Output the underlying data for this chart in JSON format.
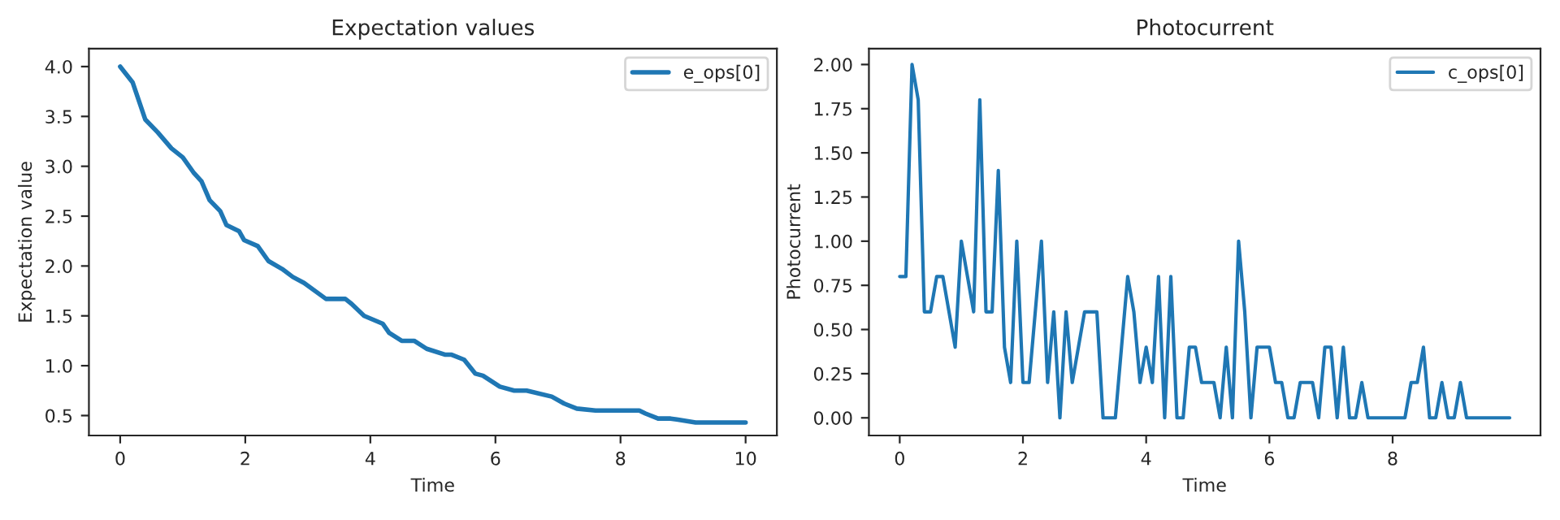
{
  "chart_data": [
    {
      "type": "line",
      "title": "Expectation values",
      "xlabel": "Time",
      "ylabel": "Expectation value",
      "series": [
        {
          "name": "e_ops[0]",
          "color": "#1f77b4",
          "x": [
            0,
            0.2,
            0.4,
            0.6,
            0.82,
            1.0,
            1.17,
            1.3,
            1.43,
            1.6,
            1.7,
            1.9,
            1.98,
            2.2,
            2.37,
            2.59,
            2.76,
            2.94,
            3.29,
            3.6,
            3.7,
            3.9,
            4.2,
            4.3,
            4.5,
            4.7,
            4.9,
            5.2,
            5.3,
            5.5,
            5.68,
            5.8,
            6.07,
            6.3,
            6.5,
            6.9,
            7.1,
            7.3,
            7.6,
            8.3,
            8.4,
            8.6,
            8.8,
            8.9,
            9.2,
            10
          ],
          "values": [
            4.0,
            3.84,
            3.47,
            3.34,
            3.18,
            3.09,
            2.94,
            2.85,
            2.66,
            2.55,
            2.41,
            2.35,
            2.26,
            2.2,
            2.05,
            1.97,
            1.89,
            1.83,
            1.67,
            1.67,
            1.62,
            1.5,
            1.42,
            1.33,
            1.25,
            1.25,
            1.17,
            1.11,
            1.11,
            1.06,
            0.92,
            0.9,
            0.79,
            0.75,
            0.75,
            0.69,
            0.62,
            0.57,
            0.55,
            0.55,
            0.52,
            0.47,
            0.47,
            0.46,
            0.43,
            0.43
          ]
        }
      ],
      "xlim": [
        -0.5,
        10.5
      ],
      "xticks": [
        0,
        2,
        4,
        6,
        8,
        10
      ],
      "ylim": [
        0.3,
        4.18
      ],
      "yticks": [
        {
          "value": 0.5,
          "label": "0.5"
        },
        {
          "value": 1.0,
          "label": "1.0"
        },
        {
          "value": 1.5,
          "label": "1.5"
        },
        {
          "value": 2.0,
          "label": "2.0"
        },
        {
          "value": 2.5,
          "label": "2.5"
        },
        {
          "value": 3.0,
          "label": "3.0"
        },
        {
          "value": 3.5,
          "label": "3.5"
        },
        {
          "value": 4.0,
          "label": "4.0"
        }
      ],
      "legend": "top right",
      "grid": false
    },
    {
      "type": "line",
      "title": "Photocurrent",
      "xlabel": "Time",
      "ylabel": "Photocurrent",
      "series": [
        {
          "name": "c_ops[0]",
          "color": "#1f77b4",
          "x": [
            0,
            0.1,
            0.2,
            0.3,
            0.4,
            0.5,
            0.6,
            0.7,
            0.8,
            0.9,
            1.0,
            1.1,
            1.2,
            1.3,
            1.4,
            1.5,
            1.6,
            1.7,
            1.8,
            1.9,
            2.0,
            2.1,
            2.2,
            2.3,
            2.4,
            2.5,
            2.6,
            2.7,
            2.8,
            2.9,
            3.0,
            3.1,
            3.2,
            3.3,
            3.4,
            3.5,
            3.6,
            3.7,
            3.8,
            3.9,
            4.0,
            4.1,
            4.2,
            4.3,
            4.4,
            4.5,
            4.6,
            4.7,
            4.8,
            4.9,
            5.0,
            5.1,
            5.2,
            5.3,
            5.4,
            5.5,
            5.6,
            5.7,
            5.8,
            5.9,
            6.0,
            6.1,
            6.2,
            6.3,
            6.4,
            6.5,
            6.6,
            6.7,
            6.8,
            6.9,
            7.0,
            7.1,
            7.2,
            7.3,
            7.4,
            7.5,
            7.6,
            7.7,
            7.8,
            7.9,
            8.0,
            8.1,
            8.2,
            8.3,
            8.4,
            8.5,
            8.6,
            8.7,
            8.8,
            8.9,
            9.0,
            9.1,
            9.2,
            9.3,
            9.4,
            9.5,
            9.6,
            9.7,
            9.8,
            9.9
          ],
          "values": [
            0.8,
            0.8,
            2.0,
            1.8,
            0.6,
            0.6,
            0.8,
            0.8,
            0.6,
            0.4,
            1.0,
            0.8,
            0.6,
            1.8,
            0.6,
            0.6,
            1.4,
            0.4,
            0.2,
            1.0,
            0.2,
            0.2,
            0.6,
            1.0,
            0.2,
            0.6,
            0,
            0.6,
            0.2,
            0.4,
            0.6,
            0.6,
            0.6,
            0,
            0,
            0,
            0.4,
            0.8,
            0.6,
            0.2,
            0.4,
            0.2,
            0.8,
            0,
            0.8,
            0,
            0,
            0.4,
            0.4,
            0.2,
            0.2,
            0.2,
            0,
            0.4,
            0,
            1.0,
            0.6,
            0,
            0.4,
            0.4,
            0.4,
            0.2,
            0.2,
            0,
            0,
            0.2,
            0.2,
            0.2,
            0,
            0.4,
            0.4,
            0,
            0.4,
            0,
            0,
            0.2,
            0,
            0,
            0,
            0,
            0,
            0,
            0,
            0.2,
            0.2,
            0.4,
            0,
            0,
            0.2,
            0,
            0,
            0.2,
            0,
            0,
            0,
            0,
            0,
            0,
            0,
            0
          ]
        }
      ],
      "xlim": [
        -0.5,
        10.4
      ],
      "xticks": [
        0,
        2,
        4,
        6,
        8
      ],
      "ylim": [
        -0.1,
        2.09
      ],
      "yticks": [
        {
          "value": 0,
          "label": "0.00"
        },
        {
          "value": 0.25,
          "label": "0.25"
        },
        {
          "value": 0.5,
          "label": "0.50"
        },
        {
          "value": 0.75,
          "label": "0.75"
        },
        {
          "value": 1.0,
          "label": "1.00"
        },
        {
          "value": 1.25,
          "label": "1.25"
        },
        {
          "value": 1.5,
          "label": "1.50"
        },
        {
          "value": 1.75,
          "label": "1.75"
        },
        {
          "value": 2.0,
          "label": "2.00"
        }
      ],
      "legend": "top right",
      "grid": false
    }
  ]
}
